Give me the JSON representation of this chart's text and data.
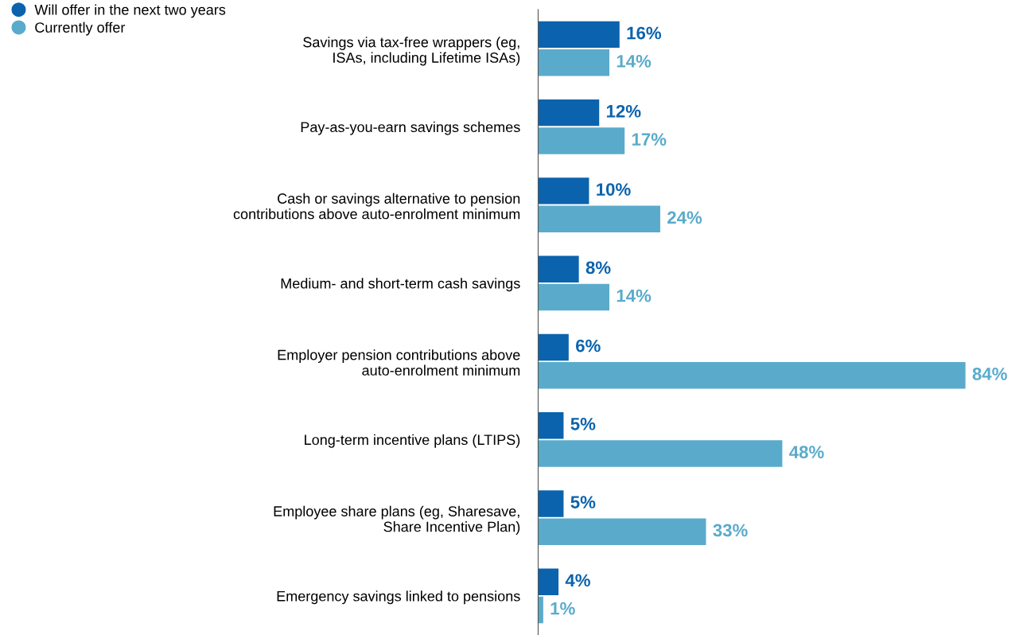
{
  "chart_data": {
    "type": "bar",
    "orientation": "horizontal",
    "legend": "top left",
    "grid": false,
    "categories": [
      "Savings via tax-free wrappers (eg,\nISAs, including Lifetime ISAs)",
      "Pay-as-you-earn savings schemes",
      "Cash or savings alternative to pension\ncontributions above auto-enrolment minimum",
      "Medium- and short-term cash savings",
      "Employer pension contributions above\nauto-enrolment minimum",
      "Long-term incentive plans (LTIPS)",
      "Employee share plans (eg, Sharesave,\nShare Incentive Plan)",
      "Emergency savings linked to pensions"
    ],
    "series": [
      {
        "name": "Will offer in the next two years",
        "color": "#0b63ad",
        "values": [
          16,
          12,
          10,
          8,
          6,
          5,
          5,
          4
        ],
        "value_labels": [
          "16%",
          "12%",
          "10%",
          "8%",
          "6%",
          "5%",
          "5%",
          "4%"
        ]
      },
      {
        "name": "Currently offer",
        "color": "#5aabcb",
        "values": [
          14,
          17,
          24,
          14,
          84,
          48,
          33,
          1
        ],
        "value_labels": [
          "14%",
          "17%",
          "24%",
          "14%",
          "84%",
          "48%",
          "33%",
          "1%"
        ]
      }
    ]
  }
}
